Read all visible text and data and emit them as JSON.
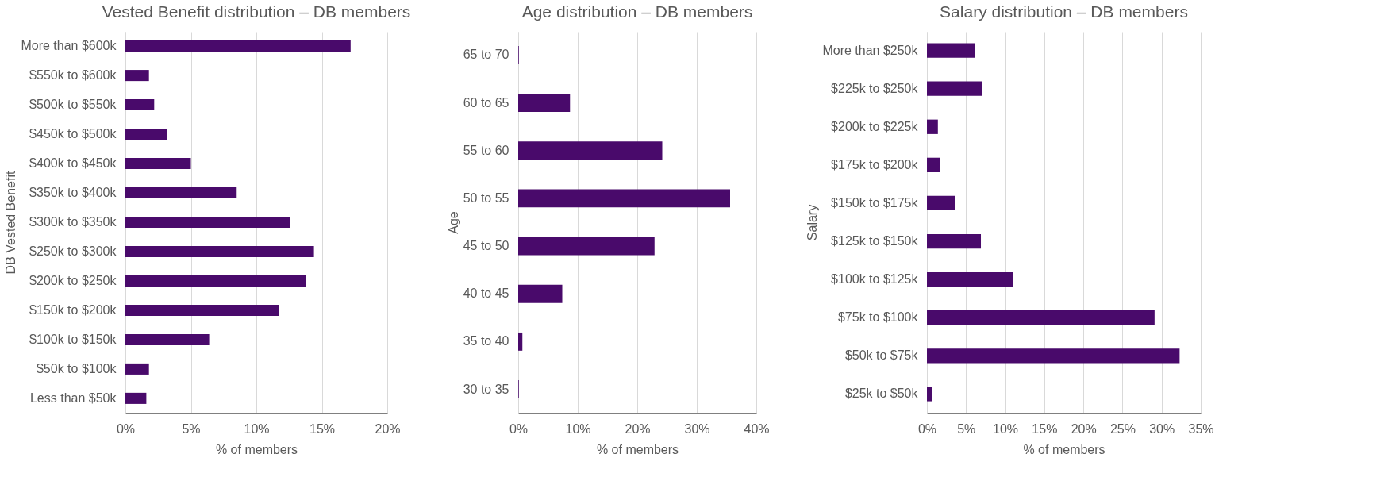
{
  "chart_data": [
    {
      "type": "bar",
      "orientation": "horizontal",
      "title": "Vested Benefit distribution – DB members",
      "xlabel": "% of members",
      "ylabel": "DB Vested Benefit",
      "color": "#490a6b",
      "grid": "x",
      "categories": [
        "More than $600k",
        "$550k to $600k",
        "$500k to $550k",
        "$450k to $500k",
        "$400k to $450k",
        "$350k to $400k",
        "$300k to $350k",
        "$250k to $300k",
        "$200k to $250k",
        "$150k to $200k",
        "$100k to $150k",
        "$50k to $100k",
        "Less than $50k"
      ],
      "values": [
        17.2,
        1.8,
        2.2,
        3.2,
        5.0,
        8.5,
        12.6,
        14.4,
        13.8,
        11.7,
        6.4,
        1.8,
        1.6
      ],
      "xlim": [
        0,
        20
      ],
      "xticks": [
        {
          "value": 0,
          "label": "0%"
        },
        {
          "value": 5,
          "label": "5%"
        },
        {
          "value": 10,
          "label": "10%"
        },
        {
          "value": 15,
          "label": "15%"
        },
        {
          "value": 20,
          "label": "20%"
        }
      ]
    },
    {
      "type": "bar",
      "orientation": "horizontal",
      "title": "Age distribution – DB members",
      "xlabel": "% of members",
      "ylabel": "Age",
      "color": "#490a6b",
      "grid": "x",
      "categories": [
        "65 to 70",
        "60 to 65",
        "55 to 60",
        "50 to 55",
        "45 to 50",
        "40 to 45",
        "35 to 40",
        "30 to 35"
      ],
      "values": [
        0.1,
        8.7,
        24.2,
        35.6,
        22.9,
        7.4,
        0.7,
        0.1
      ],
      "xlim": [
        0,
        40
      ],
      "xticks": [
        {
          "value": 0,
          "label": "0%"
        },
        {
          "value": 10,
          "label": "10%"
        },
        {
          "value": 20,
          "label": "20%"
        },
        {
          "value": 30,
          "label": "30%"
        },
        {
          "value": 40,
          "label": "40%"
        }
      ]
    },
    {
      "type": "bar",
      "orientation": "horizontal",
      "title": "Salary distribution – DB members",
      "xlabel": "% of members",
      "ylabel": "Salary",
      "color": "#490a6b",
      "grid": "x",
      "categories": [
        "More than $250k",
        "$225k to $250k",
        "$200k to $225k",
        "$175k to $200k",
        "$150k to $175k",
        "$125k to $150k",
        "$100k to $125k",
        "$75k to $100k",
        "$50k to $75k",
        "$25k to $50k"
      ],
      "values": [
        6.1,
        7.0,
        1.4,
        1.7,
        3.6,
        6.9,
        11.0,
        29.1,
        32.3,
        0.7
      ],
      "xlim": [
        0,
        35
      ],
      "xticks": [
        {
          "value": 0,
          "label": "0%"
        },
        {
          "value": 5,
          "label": "5%"
        },
        {
          "value": 10,
          "label": "10%"
        },
        {
          "value": 15,
          "label": "15%"
        },
        {
          "value": 20,
          "label": "20%"
        },
        {
          "value": 25,
          "label": "25%"
        },
        {
          "value": 30,
          "label": "30%"
        },
        {
          "value": 35,
          "label": "35%"
        }
      ]
    }
  ]
}
